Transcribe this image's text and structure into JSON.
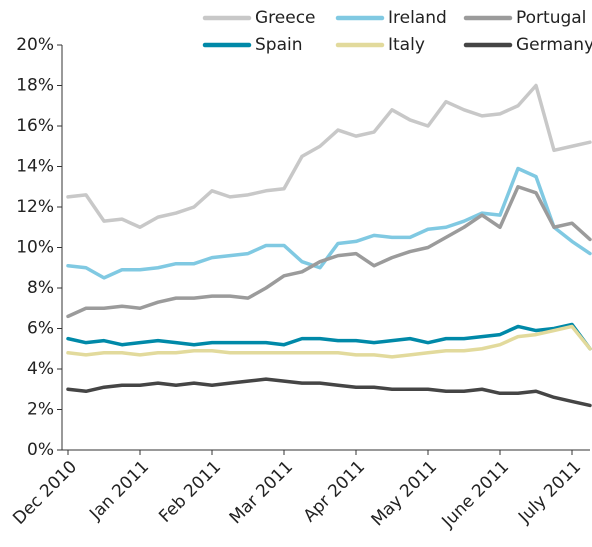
{
  "chart_data": {
    "type": "line",
    "categories": [
      "Dec 2010",
      null,
      null,
      null,
      "Jan 2011",
      null,
      null,
      null,
      "Feb 2011",
      null,
      null,
      null,
      "Mar 2011",
      null,
      null,
      null,
      "Apr 2011",
      null,
      null,
      null,
      "May 2011",
      null,
      null,
      null,
      "June 2011",
      null,
      null,
      null,
      "July 2011",
      null
    ],
    "series": [
      {
        "name": "Greece",
        "color": "#c8c8c8",
        "values": [
          12.5,
          12.6,
          11.3,
          11.4,
          11.0,
          11.5,
          11.7,
          12.0,
          12.8,
          12.5,
          12.6,
          12.8,
          12.9,
          14.5,
          15.0,
          15.8,
          15.5,
          15.7,
          16.8,
          16.3,
          16.0,
          17.2,
          16.8,
          16.5,
          16.6,
          17.0,
          18.0,
          14.8,
          15.0,
          15.2
        ]
      },
      {
        "name": "Ireland",
        "color": "#80c9e2",
        "values": [
          9.1,
          9.0,
          8.5,
          8.9,
          8.9,
          9.0,
          9.2,
          9.2,
          9.5,
          9.6,
          9.7,
          10.1,
          10.1,
          9.3,
          9.0,
          10.2,
          10.3,
          10.6,
          10.5,
          10.5,
          10.9,
          11.0,
          11.3,
          11.7,
          11.6,
          13.9,
          13.5,
          11.0,
          10.3,
          9.7
        ]
      },
      {
        "name": "Portugal",
        "color": "#9b9b9b",
        "values": [
          6.6,
          7.0,
          7.0,
          7.1,
          7.0,
          7.3,
          7.5,
          7.5,
          7.6,
          7.6,
          7.5,
          8.0,
          8.6,
          8.8,
          9.3,
          9.6,
          9.7,
          9.1,
          9.5,
          9.8,
          10.0,
          10.5,
          11.0,
          11.6,
          11.0,
          13.0,
          12.7,
          11.0,
          11.2,
          10.4
        ]
      },
      {
        "name": "Spain",
        "color": "#0089a8",
        "values": [
          5.5,
          5.3,
          5.4,
          5.2,
          5.3,
          5.4,
          5.3,
          5.2,
          5.3,
          5.3,
          5.3,
          5.3,
          5.2,
          5.5,
          5.5,
          5.4,
          5.4,
          5.3,
          5.4,
          5.5,
          5.3,
          5.5,
          5.5,
          5.6,
          5.7,
          6.1,
          5.9,
          6.0,
          6.2,
          5.0
        ]
      },
      {
        "name": "Italy",
        "color": "#e2da9c",
        "values": [
          4.8,
          4.7,
          4.8,
          4.8,
          4.7,
          4.8,
          4.8,
          4.9,
          4.9,
          4.8,
          4.8,
          4.8,
          4.8,
          4.8,
          4.8,
          4.8,
          4.7,
          4.7,
          4.6,
          4.7,
          4.8,
          4.9,
          4.9,
          5.0,
          5.2,
          5.6,
          5.7,
          5.9,
          6.1,
          5.0
        ]
      },
      {
        "name": "Germany",
        "color": "#454545",
        "values": [
          3.0,
          2.9,
          3.1,
          3.2,
          3.2,
          3.3,
          3.2,
          3.3,
          3.2,
          3.3,
          3.4,
          3.5,
          3.4,
          3.3,
          3.3,
          3.2,
          3.1,
          3.1,
          3.0,
          3.0,
          3.0,
          2.9,
          2.9,
          3.0,
          2.8,
          2.8,
          2.9,
          2.6,
          2.4,
          2.2
        ]
      }
    ],
    "ylim": [
      0,
      20
    ],
    "yticks": [
      {
        "value": 0,
        "label": "0%"
      },
      {
        "value": 2,
        "label": "2%"
      },
      {
        "value": 4,
        "label": "4%"
      },
      {
        "value": 6,
        "label": "6%"
      },
      {
        "value": 8,
        "label": "8%"
      },
      {
        "value": 10,
        "label": "10%"
      },
      {
        "value": 12,
        "label": "12%"
      },
      {
        "value": 14,
        "label": "14%"
      },
      {
        "value": 16,
        "label": "16%"
      },
      {
        "value": 18,
        "label": "18%"
      },
      {
        "value": 20,
        "label": "20%"
      }
    ],
    "grid": false,
    "legend": "top"
  }
}
